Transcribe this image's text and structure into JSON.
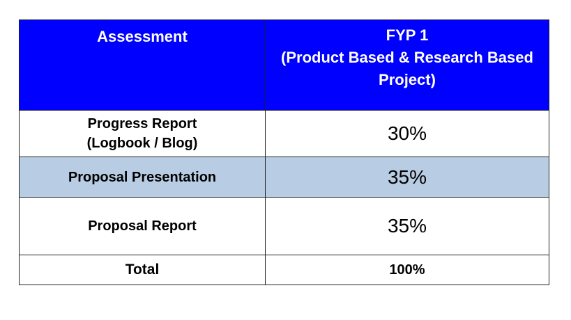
{
  "table": {
    "header": {
      "assessment": "Assessment",
      "fyp_line1": "FYP 1",
      "fyp_line2": "(Product Based & Research Based",
      "fyp_line3": "Project)"
    },
    "rows": [
      {
        "label_line1": "Progress Report",
        "label_line2": "(Logbook / Blog)",
        "value": "30%"
      },
      {
        "label": "Proposal Presentation",
        "value": "35%"
      },
      {
        "label": "Proposal Report",
        "value": "35%"
      }
    ],
    "total": {
      "label": "Total",
      "value": "100%"
    }
  },
  "colors": {
    "header_bg": "#0000ff",
    "header_text": "#ffffff",
    "highlight_row_bg": "#b8cce4"
  }
}
